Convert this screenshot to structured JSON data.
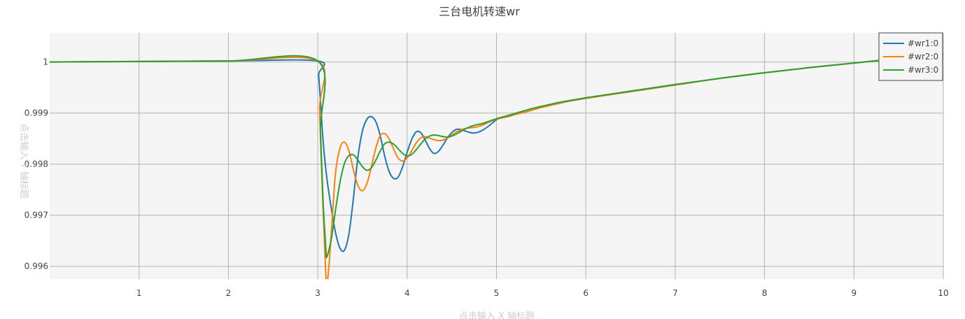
{
  "chart_data": {
    "type": "line",
    "title": "三台电机转速wr",
    "xlabel": "点击输入 X 轴标题",
    "ylabel": "点击输入 Y 轴标题",
    "xlim": [
      0,
      10
    ],
    "ylim": [
      0.99575,
      1.00057
    ],
    "x_ticks": [
      1,
      2,
      3,
      4,
      5,
      6,
      7,
      8,
      9,
      10
    ],
    "y_ticks": [
      0.996,
      0.997,
      0.998,
      0.999,
      1
    ],
    "y_tick_labels": [
      "0.996",
      "0.997",
      "0.998",
      "0.999",
      "1"
    ],
    "grid": true,
    "legend_position": "top-right",
    "plot_background": "#f5f5f5",
    "series": [
      {
        "name": "#wr1:0",
        "color": "#1f77b4",
        "x": [
          0,
          1,
          2,
          3,
          3.01,
          3.03,
          3.06,
          3.1,
          3.15,
          3.2,
          3.25,
          3.3,
          3.35,
          3.4,
          3.45,
          3.5,
          3.55,
          3.6,
          3.65,
          3.7,
          3.75,
          3.8,
          3.85,
          3.9,
          3.95,
          4.0,
          4.05,
          4.1,
          4.15,
          4.2,
          4.25,
          4.3,
          4.35,
          4.4,
          4.45,
          4.5,
          4.55,
          4.6,
          4.65,
          4.7,
          4.75,
          4.8,
          4.85,
          4.9,
          4.95,
          5.0,
          5.05,
          5.1,
          5.15,
          5.2,
          5.3,
          5.4,
          5.5,
          5.6,
          5.7,
          5.8,
          5.9,
          6.0,
          6.5,
          7.0,
          7.5,
          8.0,
          8.5,
          9.0,
          9.5,
          10.0
        ],
        "y": [
          1.0,
          1.00001,
          1.00002,
          1.00002,
          0.99975,
          0.99925,
          0.99845,
          0.99775,
          0.99715,
          0.99665,
          0.99635,
          0.99632,
          0.99665,
          0.99735,
          0.99815,
          0.99865,
          0.99888,
          0.99893,
          0.99883,
          0.99855,
          0.99815,
          0.99785,
          0.99772,
          0.99775,
          0.99795,
          0.99823,
          0.99848,
          0.99863,
          0.99862,
          0.99848,
          0.99831,
          0.99821,
          0.99825,
          0.99837,
          0.99851,
          0.99862,
          0.99868,
          0.99868,
          0.99865,
          0.99862,
          0.99861,
          0.99863,
          0.99867,
          0.99873,
          0.9988,
          0.99887,
          0.99891,
          0.99892,
          0.99894,
          0.99897,
          0.99901,
          0.99906,
          0.99911,
          0.99915,
          0.99919,
          0.99923,
          0.99926,
          0.99929,
          0.99942,
          0.99955,
          0.99968,
          0.99979,
          0.99989,
          0.99998,
          1.00007,
          1.00015
        ]
      },
      {
        "name": "#wr2:0",
        "color": "#ff7f0e",
        "x": [
          0,
          1,
          2,
          3,
          3.02,
          3.05,
          3.08,
          3.1,
          3.13,
          3.17,
          3.2,
          3.25,
          3.3,
          3.35,
          3.4,
          3.45,
          3.5,
          3.55,
          3.6,
          3.65,
          3.7,
          3.75,
          3.8,
          3.85,
          3.9,
          3.95,
          4.0,
          4.05,
          4.1,
          4.15,
          4.2,
          4.25,
          4.3,
          4.35,
          4.4,
          4.45,
          4.5,
          4.55,
          4.6,
          4.65,
          4.7,
          4.75,
          4.8,
          4.85,
          4.9,
          4.95,
          5.0,
          5.1,
          5.2,
          5.3,
          5.4,
          5.5,
          5.6,
          5.7,
          5.8,
          5.9,
          6.0,
          6.5,
          7.0,
          7.5,
          8.0,
          8.5,
          9.0,
          9.5,
          10.0
        ],
        "y": [
          1.0,
          1.00001,
          1.00002,
          1.00002,
          0.99905,
          0.99755,
          0.99625,
          0.99566,
          0.99612,
          0.99715,
          0.99785,
          0.99832,
          0.99843,
          0.99825,
          0.99788,
          0.99758,
          0.99748,
          0.99762,
          0.99795,
          0.99832,
          0.99856,
          0.9986,
          0.99849,
          0.99829,
          0.99812,
          0.99806,
          0.99812,
          0.99826,
          0.99841,
          0.99851,
          0.99854,
          0.99851,
          0.99848,
          0.99846,
          0.99847,
          0.99851,
          0.99857,
          0.99863,
          0.99867,
          0.9987,
          0.99871,
          0.99872,
          0.99874,
          0.99877,
          0.99881,
          0.99885,
          0.99888,
          0.99892,
          0.99897,
          0.99901,
          0.99906,
          0.99911,
          0.99915,
          0.99919,
          0.99923,
          0.99926,
          0.99929,
          0.99942,
          0.99955,
          0.99968,
          0.99979,
          0.99989,
          0.99998,
          1.00007,
          1.00015
        ]
      },
      {
        "name": "#wr3:0",
        "color": "#2ca02c",
        "x": [
          0,
          1,
          2,
          3,
          3.03,
          3.06,
          3.09,
          3.1,
          3.15,
          3.2,
          3.25,
          3.3,
          3.35,
          3.4,
          3.45,
          3.5,
          3.55,
          3.6,
          3.65,
          3.7,
          3.75,
          3.8,
          3.85,
          3.9,
          3.95,
          4.0,
          4.05,
          4.1,
          4.15,
          4.2,
          4.25,
          4.3,
          4.35,
          4.4,
          4.45,
          4.5,
          4.55,
          4.6,
          4.65,
          4.7,
          4.75,
          4.8,
          4.85,
          4.9,
          4.95,
          5.0,
          5.1,
          5.2,
          5.3,
          5.4,
          5.5,
          5.6,
          5.7,
          5.8,
          5.9,
          6.0,
          6.5,
          7.0,
          7.5,
          8.0,
          8.5,
          9.0,
          9.5,
          10.0
        ],
        "y": [
          1.0,
          1.00001,
          1.00002,
          1.00002,
          0.99865,
          0.99725,
          0.99636,
          0.99618,
          0.99652,
          0.99712,
          0.99766,
          0.99802,
          0.99817,
          0.99818,
          0.99808,
          0.99795,
          0.99788,
          0.99793,
          0.99808,
          0.99826,
          0.9984,
          0.99843,
          0.99839,
          0.9983,
          0.99821,
          0.99816,
          0.99819,
          0.99828,
          0.99839,
          0.99849,
          0.99855,
          0.99857,
          0.99856,
          0.99854,
          0.99853,
          0.99855,
          0.99859,
          0.99864,
          0.99869,
          0.99873,
          0.99876,
          0.99878,
          0.9988,
          0.99883,
          0.99886,
          0.99889,
          0.99894,
          0.99899,
          0.99904,
          0.99909,
          0.99913,
          0.99917,
          0.99921,
          0.99924,
          0.99927,
          0.9993,
          0.99943,
          0.99956,
          0.99968,
          0.99979,
          0.99989,
          0.99998,
          1.00007,
          1.00015
        ]
      }
    ]
  }
}
